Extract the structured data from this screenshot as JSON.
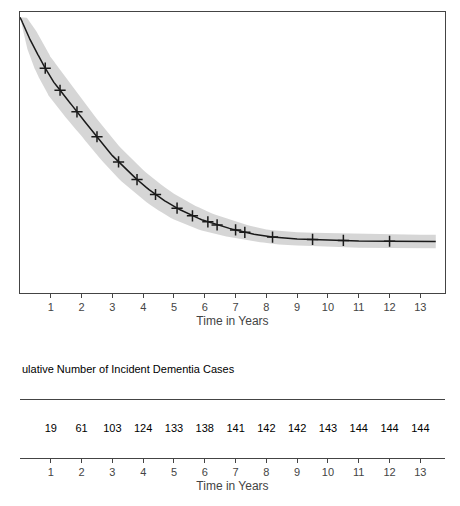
{
  "chart_data": {
    "type": "line",
    "xlabel": "Time in Years",
    "x": [
      0.0,
      0.04,
      0.06,
      0.08,
      0.1,
      0.12,
      0.14,
      0.16,
      0.18,
      0.2,
      0.22,
      0.24,
      0.26,
      0.28,
      0.3,
      0.32,
      0.34,
      0.36,
      0.38,
      0.4,
      0.42,
      0.44,
      0.46,
      0.48,
      0.5,
      0.52,
      0.54,
      0.56,
      0.58,
      0.6,
      0.62,
      0.64,
      0.66,
      0.68,
      0.7,
      0.72,
      0.74,
      0.76,
      0.78,
      0.8,
      0.82,
      0.84,
      0.86,
      0.88,
      0.9,
      0.92,
      0.94,
      0.96,
      0.98,
      1.0,
      1.05,
      1.1,
      1.15,
      1.2,
      1.25,
      1.3,
      1.35,
      1.4,
      1.45,
      1.5,
      1.55,
      1.6,
      1.65,
      1.7,
      1.75,
      1.8,
      1.85,
      1.9,
      1.95,
      2.0,
      2.1,
      2.2,
      2.3,
      2.4,
      2.5,
      2.6,
      2.7,
      2.8,
      2.9,
      3.0,
      3.1,
      3.2,
      3.3,
      3.4,
      3.5,
      3.6,
      3.7,
      3.8,
      3.9,
      4.0,
      4.1,
      4.2,
      4.3,
      4.4,
      4.5,
      4.6,
      4.7,
      4.8,
      4.9,
      5.0,
      5.1,
      5.2,
      5.3,
      5.4,
      5.5,
      5.6,
      5.7,
      5.8,
      5.9,
      6.0,
      6.1,
      6.2,
      6.3,
      6.4,
      6.5,
      6.6,
      6.7,
      6.8,
      6.9,
      7.0,
      7.1,
      7.2,
      7.3,
      7.4,
      7.5,
      7.6,
      7.7,
      7.8,
      7.9,
      8.0,
      8.2,
      8.4,
      8.6,
      8.8,
      9.0,
      9.5,
      10.0,
      10.5,
      11.0,
      12.0,
      13.0,
      13.5
    ],
    "values": [
      1.0,
      0.993,
      0.986,
      0.98,
      0.974,
      0.968,
      0.963,
      0.957,
      0.952,
      0.947,
      0.942,
      0.937,
      0.932,
      0.927,
      0.922,
      0.917,
      0.912,
      0.908,
      0.903,
      0.898,
      0.894,
      0.889,
      0.885,
      0.88,
      0.876,
      0.871,
      0.867,
      0.862,
      0.858,
      0.854,
      0.849,
      0.845,
      0.841,
      0.836,
      0.832,
      0.828,
      0.823,
      0.819,
      0.815,
      0.81,
      0.806,
      0.802,
      0.797,
      0.793,
      0.789,
      0.784,
      0.78,
      0.776,
      0.771,
      0.767,
      0.76,
      0.752,
      0.745,
      0.737,
      0.73,
      0.722,
      0.715,
      0.707,
      0.7,
      0.692,
      0.685,
      0.677,
      0.67,
      0.662,
      0.655,
      0.647,
      0.64,
      0.633,
      0.625,
      0.618,
      0.603,
      0.588,
      0.574,
      0.559,
      0.545,
      0.53,
      0.516,
      0.502,
      0.487,
      0.473,
      0.461,
      0.449,
      0.437,
      0.426,
      0.415,
      0.404,
      0.393,
      0.382,
      0.371,
      0.361,
      0.352,
      0.343,
      0.334,
      0.325,
      0.317,
      0.309,
      0.301,
      0.294,
      0.286,
      0.279,
      0.273,
      0.267,
      0.261,
      0.255,
      0.249,
      0.244,
      0.238,
      0.234,
      0.229,
      0.225,
      0.221,
      0.217,
      0.213,
      0.209,
      0.206,
      0.202,
      0.199,
      0.196,
      0.193,
      0.19,
      0.187,
      0.184,
      0.181,
      0.179,
      0.176,
      0.174,
      0.172,
      0.17,
      0.168,
      0.166,
      0.163,
      0.161,
      0.159,
      0.158,
      0.156,
      0.154,
      0.152,
      0.15,
      0.148,
      0.147,
      0.146,
      0.146
    ],
    "upper": [
      1.0,
      1.0,
      1.0,
      1.0,
      1.0,
      1.0,
      1.0,
      1.0,
      1.0,
      1.0,
      0.998,
      0.995,
      0.992,
      0.989,
      0.986,
      0.983,
      0.98,
      0.977,
      0.974,
      0.971,
      0.968,
      0.964,
      0.96,
      0.957,
      0.953,
      0.949,
      0.945,
      0.941,
      0.937,
      0.933,
      0.929,
      0.925,
      0.921,
      0.917,
      0.912,
      0.908,
      0.904,
      0.9,
      0.895,
      0.891,
      0.887,
      0.882,
      0.878,
      0.874,
      0.869,
      0.865,
      0.86,
      0.856,
      0.851,
      0.847,
      0.84,
      0.832,
      0.824,
      0.816,
      0.808,
      0.8,
      0.792,
      0.784,
      0.776,
      0.768,
      0.76,
      0.752,
      0.744,
      0.736,
      0.728,
      0.72,
      0.712,
      0.704,
      0.696,
      0.688,
      0.673,
      0.658,
      0.643,
      0.628,
      0.613,
      0.598,
      0.583,
      0.568,
      0.553,
      0.538,
      0.525,
      0.512,
      0.499,
      0.487,
      0.475,
      0.463,
      0.451,
      0.44,
      0.428,
      0.418,
      0.408,
      0.398,
      0.389,
      0.379,
      0.37,
      0.361,
      0.353,
      0.344,
      0.336,
      0.328,
      0.321,
      0.314,
      0.307,
      0.3,
      0.294,
      0.287,
      0.281,
      0.276,
      0.27,
      0.265,
      0.26,
      0.255,
      0.25,
      0.246,
      0.241,
      0.237,
      0.233,
      0.229,
      0.225,
      0.222,
      0.218,
      0.215,
      0.211,
      0.208,
      0.205,
      0.202,
      0.199,
      0.197,
      0.194,
      0.192,
      0.189,
      0.187,
      0.185,
      0.183,
      0.181,
      0.179,
      0.178,
      0.176,
      0.174,
      0.173,
      0.172,
      0.172
    ],
    "lower": [
      1.0,
      0.986,
      0.972,
      0.96,
      0.948,
      0.936,
      0.926,
      0.914,
      0.904,
      0.894,
      0.886,
      0.879,
      0.872,
      0.865,
      0.858,
      0.851,
      0.844,
      0.839,
      0.832,
      0.825,
      0.82,
      0.814,
      0.81,
      0.803,
      0.799,
      0.793,
      0.789,
      0.783,
      0.779,
      0.775,
      0.769,
      0.765,
      0.761,
      0.755,
      0.752,
      0.748,
      0.742,
      0.738,
      0.735,
      0.729,
      0.725,
      0.722,
      0.716,
      0.712,
      0.709,
      0.703,
      0.7,
      0.696,
      0.691,
      0.687,
      0.68,
      0.672,
      0.666,
      0.658,
      0.652,
      0.644,
      0.638,
      0.63,
      0.624,
      0.616,
      0.61,
      0.602,
      0.596,
      0.588,
      0.582,
      0.574,
      0.568,
      0.562,
      0.554,
      0.548,
      0.533,
      0.518,
      0.505,
      0.49,
      0.477,
      0.462,
      0.449,
      0.436,
      0.421,
      0.408,
      0.397,
      0.386,
      0.375,
      0.365,
      0.355,
      0.345,
      0.335,
      0.324,
      0.314,
      0.304,
      0.296,
      0.288,
      0.279,
      0.271,
      0.264,
      0.257,
      0.249,
      0.244,
      0.236,
      0.23,
      0.225,
      0.22,
      0.215,
      0.21,
      0.204,
      0.201,
      0.195,
      0.192,
      0.188,
      0.185,
      0.182,
      0.179,
      0.176,
      0.172,
      0.171,
      0.167,
      0.165,
      0.163,
      0.161,
      0.158,
      0.156,
      0.153,
      0.151,
      0.15,
      0.147,
      0.146,
      0.145,
      0.143,
      0.142,
      0.14,
      0.137,
      0.135,
      0.133,
      0.133,
      0.131,
      0.129,
      0.126,
      0.124,
      0.122,
      0.121,
      0.12,
      0.12
    ],
    "color": "#1a1a1a",
    "censor_x": [
      0.82,
      1.3,
      1.85,
      2.5,
      3.2,
      3.8,
      4.4,
      5.1,
      5.6,
      6.1,
      6.4,
      7.0,
      7.3,
      8.2,
      9.5,
      10.5,
      12.0
    ],
    "censor_values": [
      0.806,
      0.722,
      0.64,
      0.545,
      0.449,
      0.382,
      0.325,
      0.273,
      0.244,
      0.221,
      0.209,
      0.19,
      0.181,
      0.163,
      0.154,
      0.15,
      0.147
    ],
    "marker": "cross",
    "xlim": [
      0.0,
      13.8
    ],
    "ylim": [
      -0.05,
      1.02
    ],
    "xticks": [
      1,
      2,
      3,
      4,
      5,
      6,
      7,
      8,
      9,
      10,
      11,
      12,
      13
    ],
    "yticks": [],
    "tick_labels": "x",
    "grid": false,
    "table_label": "ulative Number of Incident Dementia Cases",
    "table_x": [
      1,
      2,
      3,
      4,
      5,
      6,
      7,
      8,
      9,
      10,
      11,
      12,
      13
    ],
    "table_values": [
      19,
      61,
      103,
      124,
      133,
      138,
      141,
      142,
      142,
      143,
      144,
      144,
      144
    ]
  }
}
